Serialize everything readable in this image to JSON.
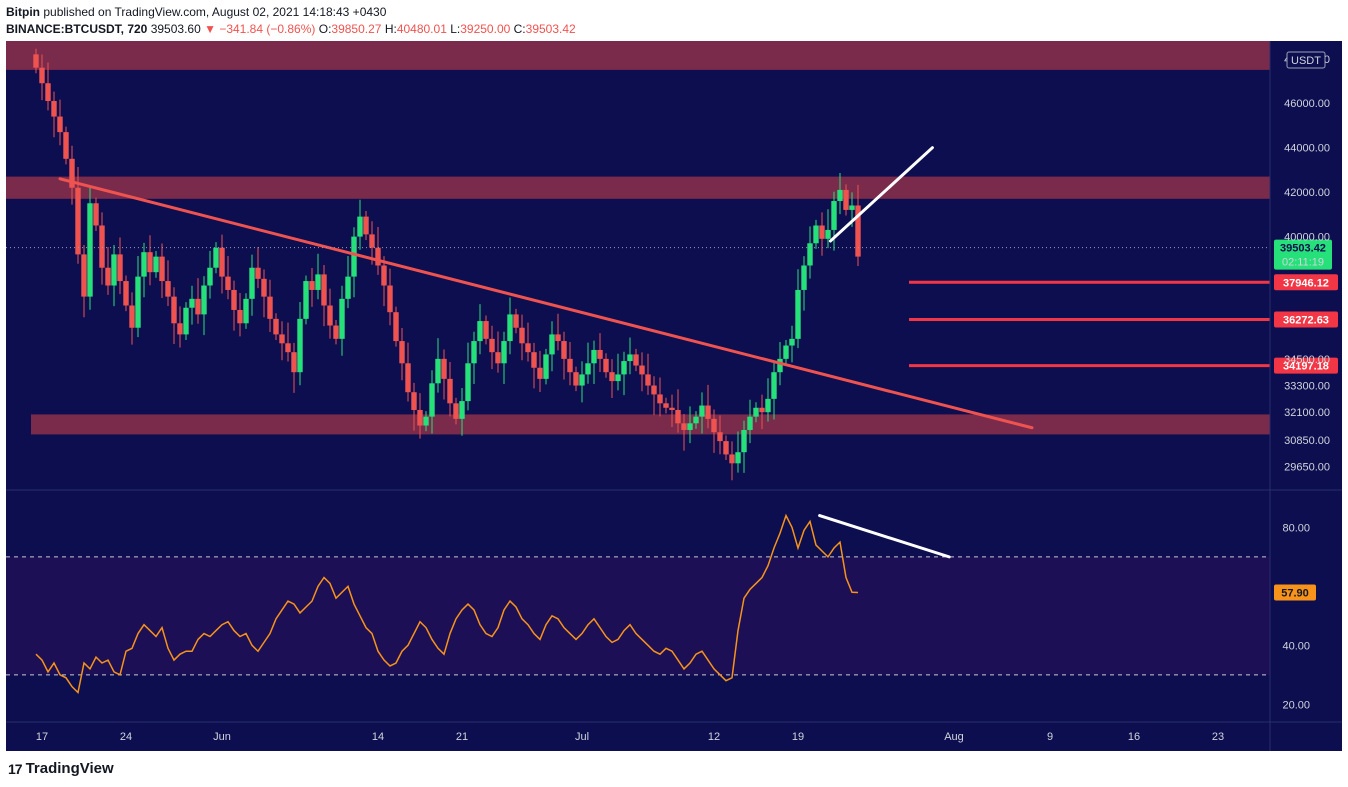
{
  "header": {
    "publisher": "Bitpin",
    "published_text": "published on TradingView.com, August 02, 2021 14:18:43 +0430",
    "symbol": "BINANCE:BTCUSDT, 720",
    "last": "39503.60",
    "change": "▼ −341.84 (−0.86%)",
    "o_label": "O:",
    "o_value": "39850.27",
    "h_label": "H:",
    "h_value": "40480.01",
    "l_label": "L:",
    "l_value": "39250.00",
    "c_label": "C:",
    "c_value": "39503.42"
  },
  "footer": {
    "logo_text": "TradingView",
    "logo_mark": "17"
  },
  "colors": {
    "background": "#0c0e4f",
    "up": "#26e07a",
    "down": "#ef5350",
    "zone": "#8e2f4a",
    "rsi": "#f7931a",
    "level": "#f23645"
  },
  "chart_data": [
    {
      "type": "candlestick",
      "ylim": [
        28600,
        48800
      ],
      "unit_badge": "USDT",
      "y_ticks": [
        "48000.00",
        "46000.00",
        "44000.00",
        "42000.00",
        "40000.00",
        "34500.00",
        "33300.00",
        "32100.00",
        "30850.00",
        "29650.00"
      ],
      "x_ticks": [
        "17",
        "24",
        "Jun",
        "14",
        "21",
        "Jul",
        "12",
        "19",
        "Aug",
        "9",
        "16",
        "23"
      ],
      "x_tick_days": [
        0,
        7,
        15,
        28,
        35,
        45,
        56,
        63,
        76,
        84,
        91,
        98
      ],
      "current_price": {
        "value": 39503.42,
        "label": "39503.42",
        "countdown": "02:11:19"
      },
      "levels": [
        {
          "value": 37946.12,
          "label": "37946.12"
        },
        {
          "value": 36272.63,
          "label": "36272.63"
        },
        {
          "value": 34197.18,
          "label": "34197.18"
        }
      ],
      "zones": [
        {
          "from": 47500,
          "to": 48800
        },
        {
          "from": 41700,
          "to": 42700
        },
        {
          "from": 31100,
          "to": 32000
        }
      ],
      "trendlines": [
        {
          "color": "#ef5350",
          "points": [
            [
              1.5,
              42600
            ],
            [
              82.5,
              31400
            ]
          ]
        },
        {
          "color": "#ffffff",
          "points": [
            [
              65.7,
              39800
            ],
            [
              74.2,
              44000
            ]
          ]
        }
      ],
      "close_start": 48200,
      "closes": [
        47600,
        46900,
        46100,
        45400,
        44700,
        43500,
        42200,
        39200,
        37300,
        41500,
        40500,
        38600,
        37800,
        39200,
        38000,
        36900,
        35900,
        38200,
        39300,
        38400,
        39100,
        38000,
        37300,
        36100,
        35600,
        36800,
        37200,
        36500,
        37800,
        38600,
        39500,
        38200,
        37600,
        36700,
        36100,
        37200,
        38600,
        38100,
        37300,
        36300,
        35600,
        35200,
        34800,
        33900,
        36300,
        38000,
        37600,
        38300,
        36900,
        36000,
        35400,
        37200,
        38200,
        40000,
        40900,
        40100,
        39500,
        38700,
        37800,
        36600,
        35300,
        34300,
        33000,
        32200,
        31500,
        31900,
        33400,
        34500,
        33600,
        32500,
        31800,
        32600,
        34300,
        35300,
        36200,
        35400,
        34800,
        34300,
        35300,
        36500,
        35900,
        35200,
        34800,
        34100,
        33600,
        34700,
        35600,
        35300,
        34500,
        33900,
        33300,
        33800,
        34300,
        34900,
        34500,
        33900,
        33500,
        33800,
        34400,
        34700,
        34200,
        33800,
        33300,
        32900,
        32500,
        32300,
        32200,
        31600,
        31300,
        31600,
        31900,
        32400,
        31800,
        31200,
        30800,
        30200,
        29800,
        30300,
        31300,
        31900,
        32300,
        32100,
        32700,
        33900,
        34500,
        35100,
        35400,
        37600,
        38700,
        39700,
        40500,
        39900,
        40300,
        41600,
        42100,
        41200,
        41400,
        39100
      ],
      "rsi": {
        "ylim": [
          14,
          92
        ],
        "y_ticks": [
          "80.00",
          "40.00",
          "20.00"
        ],
        "upper": 70,
        "lower": 30,
        "current": {
          "value": 57.9,
          "label": "57.90"
        },
        "trendline": [
          [
            64.8,
            84
          ],
          [
            75.6,
            70
          ]
        ],
        "values": [
          37,
          35,
          31,
          34,
          30,
          29,
          26,
          24,
          34,
          32,
          36,
          34,
          35,
          31,
          30,
          38,
          39,
          44,
          47,
          45,
          43,
          46,
          39,
          35,
          37,
          38,
          38,
          42,
          44,
          43,
          45,
          47,
          48,
          45,
          43,
          44,
          40,
          38,
          41,
          44,
          49,
          52,
          55,
          54,
          51,
          53,
          55,
          60,
          63,
          61,
          56,
          58,
          60,
          54,
          50,
          46,
          44,
          38,
          35,
          33,
          34,
          38,
          40,
          44,
          48,
          46,
          42,
          39,
          37,
          44,
          49,
          52,
          54,
          52,
          47,
          44,
          43,
          46,
          52,
          55,
          53,
          49,
          47,
          44,
          42,
          47,
          50,
          49,
          46,
          44,
          42,
          44,
          47,
          49,
          46,
          43,
          41,
          42,
          45,
          47,
          44,
          42,
          40,
          38,
          37,
          39,
          38,
          35,
          32,
          34,
          37,
          38,
          35,
          32,
          30,
          28,
          29,
          45,
          56,
          59,
          61,
          63,
          67,
          73,
          78,
          84,
          80,
          73,
          79,
          82,
          74,
          72,
          70,
          73,
          75,
          63,
          58,
          57.9
        ]
      }
    }
  ]
}
